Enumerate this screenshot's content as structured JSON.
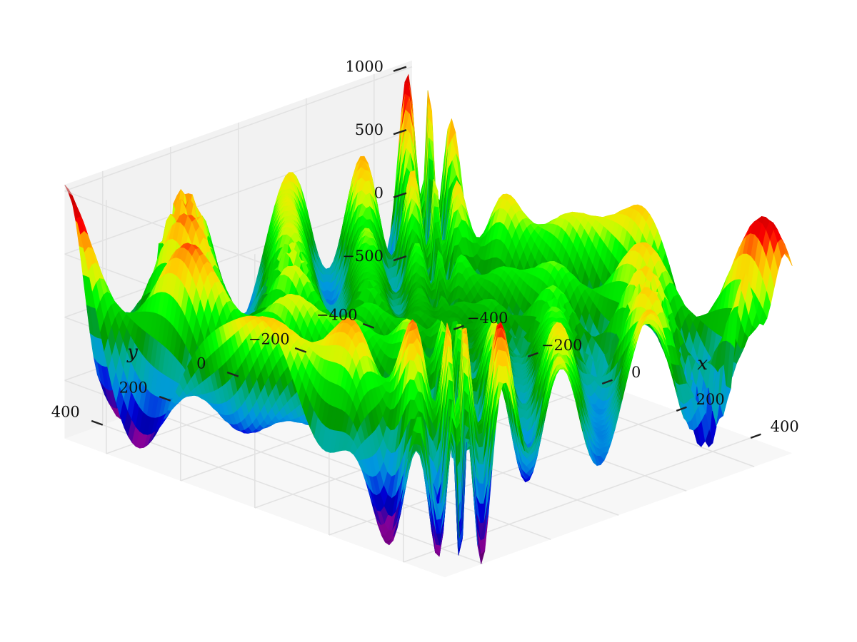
{
  "chart_data": {
    "type": "surface3d",
    "x_label": "x",
    "y_label": "y",
    "x_range": [
      -512,
      512
    ],
    "y_range": [
      -512,
      512
    ],
    "z_range": [
      -960,
      1050
    ],
    "x_ticks": [
      {
        "value": -400,
        "label": "−400"
      },
      {
        "value": -200,
        "label": "−200"
      },
      {
        "value": 0,
        "label": "0"
      },
      {
        "value": 200,
        "label": "200"
      },
      {
        "value": 400,
        "label": "400"
      }
    ],
    "y_ticks": [
      {
        "value": -400,
        "label": "−400"
      },
      {
        "value": -200,
        "label": "−200"
      },
      {
        "value": 0,
        "label": "0"
      },
      {
        "value": 200,
        "label": "200"
      },
      {
        "value": 400,
        "label": "400"
      }
    ],
    "z_ticks": [
      {
        "value": -500,
        "label": "−500"
      },
      {
        "value": 0,
        "label": "0"
      },
      {
        "value": 500,
        "label": "500"
      },
      {
        "value": 1000,
        "label": "1000"
      }
    ],
    "surface": {
      "function": "eggholder",
      "colormap": "nipy_spectral",
      "grid": true
    }
  }
}
